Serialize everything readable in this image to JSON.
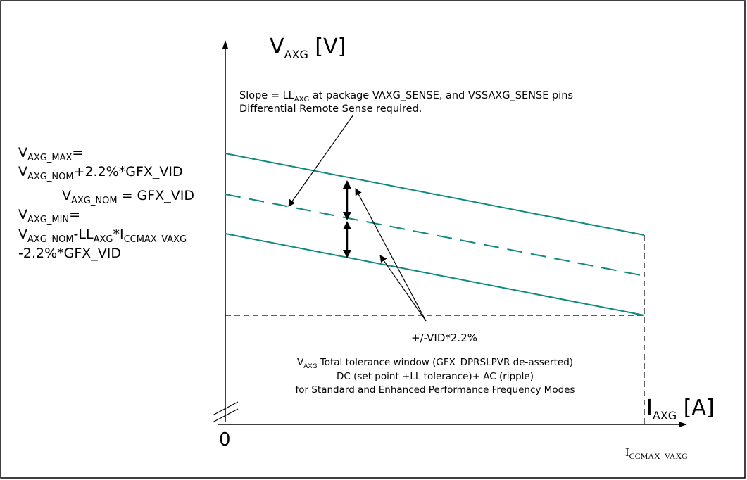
{
  "axes": {
    "y_title": "V",
    "y_title_sub": "AXG",
    "y_title_unit": " [V]",
    "x_title": "I",
    "x_title_sub": "AXG",
    "x_title_unit": " [A]",
    "origin": "0",
    "x_tick": "I",
    "x_tick_sub": "CCMAX_VAXG"
  },
  "left_labels": {
    "vmax_line1": {
      "V": "V",
      "sub": "AXG_MAX",
      "rest": "="
    },
    "vmax_line2": {
      "V": "V",
      "sub": "AXG_NOM",
      "rest": "+2.2%*GFX_VID"
    },
    "vnom": {
      "V": "V",
      "sub": "AXG_NOM",
      "rest": " = GFX_VID"
    },
    "vmin_line1": {
      "V": "V",
      "sub": "AXG_MIN",
      "rest": "="
    },
    "vmin_line2": {
      "V": "V",
      "sub1": "AXG_NOM",
      "mid1": "-LL",
      "sub2": "AXG",
      "mid2": "*I",
      "sub3": "CCMAX_VAXG"
    },
    "vmin_line3": "-2.2%*GFX_VID"
  },
  "annotations": {
    "slope_a": "Slope = LL",
    "slope_sub": "AXG",
    "slope_b": " at package VAXG_SENSE, and VSSAXG_SENSE pins",
    "slope_line2": "Differential Remote Sense required.",
    "tolerance": "+/-VID*2.2%",
    "window_V": "V",
    "window_sub": "AXG",
    "window_rest": " Total tolerance window (GFX_DPRSLPVR de-asserted)",
    "window_line2": "DC (set point +LL tolerance)+ AC (ripple)",
    "window_line3": "for Standard and Enhanced Performance Frequency Modes"
  },
  "colors": {
    "load_line": "#0e8a80",
    "axis": "#000000"
  }
}
